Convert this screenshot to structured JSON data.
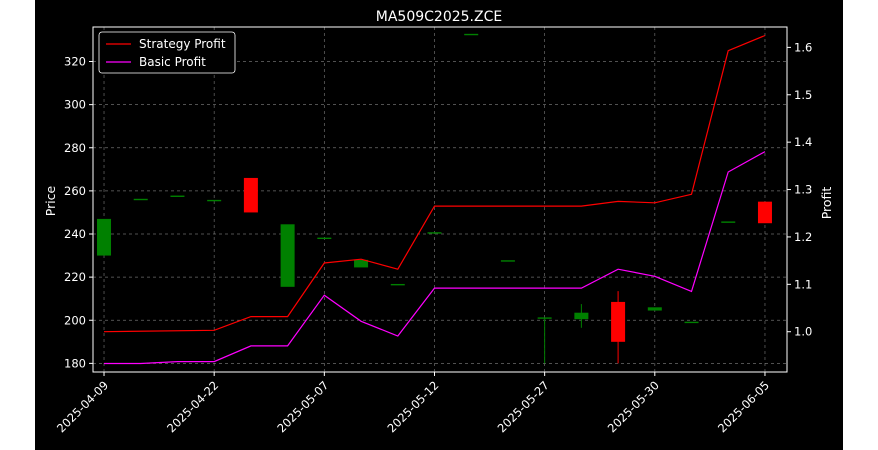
{
  "chart_data": {
    "type": "candlestick",
    "title": "MA509C2025.ZCE",
    "ylabel_left": "Price",
    "ylabel_right": "Profit",
    "ylim_left": [
      176,
      336
    ],
    "ylim_right": [
      0.915,
      1.643
    ],
    "yticks_left": [
      180,
      200,
      220,
      240,
      260,
      280,
      300,
      320
    ],
    "yticks_right": [
      "1.0",
      "1.1",
      "1.2",
      "1.3",
      "1.4",
      "1.5",
      "1.6"
    ],
    "yticks_right_values": [
      1.0,
      1.1,
      1.2,
      1.3,
      1.4,
      1.5,
      1.6
    ],
    "x_tick_labels": [
      "2025-04-09",
      "2025-04-22",
      "2025-05-07",
      "2025-05-12",
      "2025-05-27",
      "2025-05-30",
      "2025-06-05"
    ],
    "x_tick_positions": [
      0,
      3,
      6,
      9,
      12,
      15,
      18
    ],
    "x_range": [
      -0.3,
      18.6
    ],
    "candles": [
      {
        "x": 0,
        "open": 230,
        "close": 247,
        "high": 247,
        "low": 230
      },
      {
        "x": 1,
        "open": 256,
        "close": 256,
        "high": 256,
        "low": 256
      },
      {
        "x": 2,
        "open": 257.5,
        "close": 257.5,
        "high": 257.5,
        "low": 257.5
      },
      {
        "x": 3,
        "open": 255.5,
        "close": 255.5,
        "high": 255.5,
        "low": 255.5
      },
      {
        "x": 4,
        "open": 266,
        "close": 250,
        "high": 266,
        "low": 250
      },
      {
        "x": 5,
        "open": 215.5,
        "close": 244.5,
        "high": 244.5,
        "low": 215.5
      },
      {
        "x": 6,
        "open": 238,
        "close": 238,
        "high": 238,
        "low": 238
      },
      {
        "x": 7,
        "open": 224.5,
        "close": 228,
        "high": 228,
        "low": 224.5
      },
      {
        "x": 8,
        "open": 216.5,
        "close": 216.5,
        "high": 216.5,
        "low": 216.5
      },
      {
        "x": 9,
        "open": 240.5,
        "close": 240.5,
        "high": 240.5,
        "low": 240.5
      },
      {
        "x": 10,
        "open": 332.5,
        "close": 332.5,
        "high": 332.5,
        "low": 332.5
      },
      {
        "x": 11,
        "open": 227.5,
        "close": 227.5,
        "high": 227.5,
        "low": 227.5
      },
      {
        "x": 12,
        "open": 201,
        "close": 201,
        "high": 201,
        "low": 180
      },
      {
        "x": 13,
        "open": 200.5,
        "close": 203.5,
        "high": 207.5,
        "low": 196.5
      },
      {
        "x": 14,
        "open": 208.5,
        "close": 190,
        "high": 213.5,
        "low": 180
      },
      {
        "x": 15,
        "open": 204.5,
        "close": 206,
        "high": 206,
        "low": 204.5
      },
      {
        "x": 16,
        "open": 199,
        "close": 199,
        "high": 199,
        "low": 199
      },
      {
        "x": 17,
        "open": 245.5,
        "close": 245.5,
        "high": 245.5,
        "low": 245.5
      },
      {
        "x": 18,
        "open": 255,
        "close": 245,
        "high": 255,
        "low": 245
      }
    ],
    "series": [
      {
        "name": "Strategy Profit",
        "color": "#ff0000",
        "x": [
          0,
          3,
          4,
          5,
          6,
          7,
          8,
          9,
          13,
          14,
          15,
          16,
          17,
          18
        ],
        "values": [
          1.0,
          1.003,
          1.032,
          1.032,
          1.145,
          1.153,
          1.132,
          1.265,
          1.265,
          1.275,
          1.272,
          1.29,
          1.593,
          1.625
        ]
      },
      {
        "name": "Basic Profit",
        "color": "#ff00ff",
        "x": [
          0,
          1,
          2,
          3,
          4,
          5,
          6,
          7,
          8,
          9,
          13,
          14,
          15,
          16,
          17,
          18
        ],
        "values": [
          0.933,
          0.933,
          0.937,
          0.937,
          0.97,
          0.97,
          1.077,
          1.022,
          0.991,
          1.092,
          1.092,
          1.132,
          1.117,
          1.085,
          1.337,
          1.38
        ]
      }
    ],
    "grid": true,
    "legend_position": "upper-left"
  }
}
